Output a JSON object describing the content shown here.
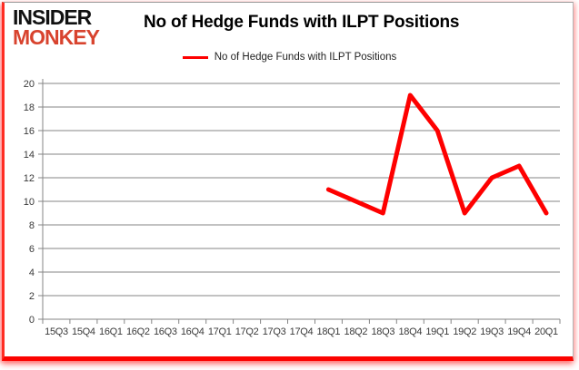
{
  "brand": {
    "line1": "INSIDER",
    "line2": "MONKEY"
  },
  "header": {
    "title": "No of Hedge Funds with ILPT Positions"
  },
  "legend": {
    "label": "No of Hedge Funds with ILPT Positions"
  },
  "colors": {
    "series_line": "#fe0000",
    "logo_red": "#d8432e",
    "grid": "#858585",
    "axis_text": "#3a3a3a",
    "frame_red": "#fb0300"
  },
  "chart_data": {
    "type": "line",
    "title": "No of Hedge Funds with ILPT Positions",
    "categories": [
      "15Q3",
      "15Q4",
      "16Q1",
      "16Q2",
      "16Q3",
      "16Q4",
      "17Q1",
      "17Q2",
      "17Q3",
      "17Q4",
      "18Q1",
      "18Q2",
      "18Q3",
      "18Q4",
      "19Q1",
      "19Q2",
      "19Q3",
      "19Q4",
      "20Q1"
    ],
    "series": [
      {
        "name": "No of Hedge Funds with ILPT Positions",
        "values": [
          null,
          null,
          null,
          null,
          null,
          null,
          null,
          null,
          null,
          null,
          11,
          10,
          9,
          19,
          16,
          9,
          12,
          13,
          9
        ]
      }
    ],
    "xlabel": "",
    "ylabel": "",
    "ylim": [
      0,
      20
    ],
    "ytick_step": 2,
    "grid": true,
    "legend_position": "top-center"
  }
}
